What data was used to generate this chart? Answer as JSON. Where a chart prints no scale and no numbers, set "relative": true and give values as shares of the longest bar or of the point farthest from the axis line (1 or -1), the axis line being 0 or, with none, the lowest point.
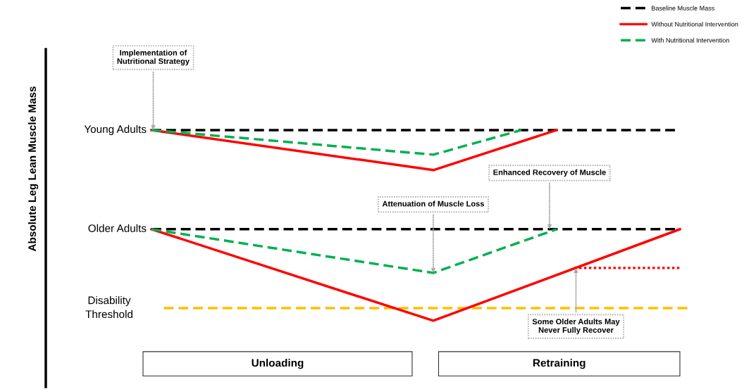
{
  "chart_data": {
    "type": "line",
    "relative": true,
    "categories": [
      null,
      null,
      null,
      null,
      null,
      null,
      null,
      null,
      null,
      null,
      null,
      null,
      null,
      null,
      null,
      null,
      null,
      null,
      null,
      null,
      null,
      null,
      null,
      null,
      null,
      null,
      null,
      null,
      null,
      null,
      null
    ],
    "series": [
      {
        "name": "Baseline Muscle Mass",
        "color": "#000000",
        "line_style": "dashed",
        "values": [
          1,
          null,
          null,
          null,
          null,
          null,
          null,
          null,
          null,
          null,
          null,
          null,
          null,
          null,
          null,
          null,
          null,
          null,
          null,
          null,
          null,
          null,
          null,
          null,
          null,
          null,
          null,
          null,
          null,
          null,
          1
        ]
      },
      {
        "color": "#000000",
        "line_style": "dashed",
        "values": [
          0.48,
          null,
          null,
          null,
          null,
          null,
          null,
          null,
          null,
          null,
          null,
          null,
          null,
          null,
          null,
          null,
          null,
          null,
          null,
          null,
          null,
          null,
          null,
          null,
          null,
          null,
          null,
          null,
          null,
          null,
          0.48
        ]
      },
      {
        "name": "Without Nutritional Intervention",
        "color": "#ff0000",
        "line_style": "solid",
        "values": [
          1,
          null,
          null,
          null,
          null,
          null,
          null,
          null,
          null,
          null,
          null,
          null,
          null,
          null,
          null,
          null,
          0.79,
          null,
          null,
          null,
          null,
          null,
          null,
          1,
          null,
          null,
          null,
          null,
          null,
          null,
          null
        ]
      },
      {
        "color": "#ff0000",
        "line_style": "solid",
        "values": [
          0.48,
          null,
          null,
          null,
          null,
          null,
          null,
          null,
          null,
          null,
          null,
          null,
          null,
          null,
          null,
          null,
          0,
          null,
          null,
          null,
          null,
          null,
          null,
          null,
          null,
          null,
          null,
          null,
          null,
          null,
          0.48
        ]
      },
      {
        "color": "#ff0000",
        "line_style": "dotted",
        "values": [
          null,
          null,
          null,
          null,
          null,
          null,
          null,
          null,
          null,
          null,
          null,
          null,
          null,
          null,
          null,
          null,
          null,
          null,
          null,
          null,
          null,
          null,
          null,
          null,
          0.277,
          null,
          null,
          null,
          null,
          null,
          0.277
        ]
      },
      {
        "name": "With Nutritional Intervention",
        "color": "#00b050",
        "line_style": "dashed",
        "values": [
          1,
          null,
          null,
          null,
          null,
          null,
          null,
          null,
          null,
          null,
          null,
          null,
          null,
          null,
          null,
          null,
          0.871,
          null,
          null,
          null,
          null,
          1,
          null,
          null,
          null,
          null,
          null,
          null,
          null,
          null,
          null
        ]
      },
      {
        "color": "#00b050",
        "line_style": "dashed",
        "values": [
          0.48,
          null,
          null,
          null,
          null,
          null,
          null,
          null,
          null,
          null,
          null,
          null,
          null,
          null,
          null,
          null,
          0.251,
          null,
          null,
          null,
          null,
          null,
          null,
          0.48,
          null,
          null,
          null,
          null,
          null,
          null,
          null
        ]
      }
    ],
    "ref_lines": [
      {
        "axis": "y",
        "value": 0.066,
        "label": "Disability Threshold",
        "color": "#ffc000",
        "line_style": "dashed"
      }
    ],
    "annotations": [
      "Young Adults",
      "Older Adults",
      {
        "text": "Implementation of Nutritional Strategy",
        "y": 1
      },
      {
        "text": "Attenuation of Muscle Loss",
        "y": 0.251
      },
      {
        "text": "Enhanced Recovery of Muscle",
        "y": 0.48
      },
      {
        "text": "Some Older Adults May Never Fully Recover",
        "y": 0.277
      },
      "Unloading",
      "Retraining",
      "Absolute Leg Lean Muscle Mass"
    ],
    "legend": "top right",
    "grid": false
  }
}
